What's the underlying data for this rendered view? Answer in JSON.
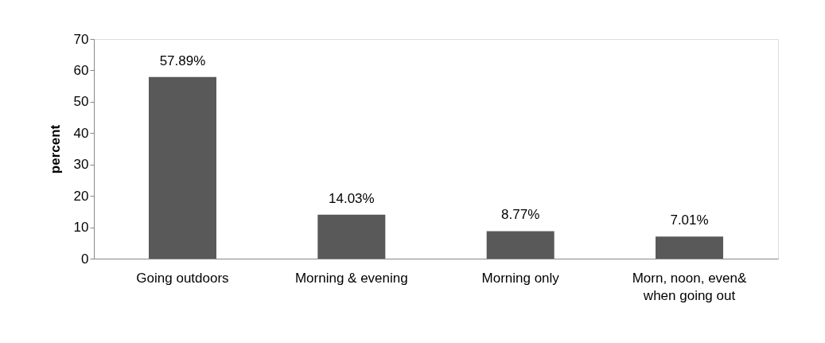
{
  "chart_data": {
    "type": "bar",
    "ylabel": "percent",
    "categories": [
      "Going outdoors",
      "Morning & evening",
      "Morning only",
      "Morn, noon, even& when going out"
    ],
    "values": [
      57.89,
      14.03,
      8.77,
      7.01
    ],
    "value_labels": [
      "57.89%",
      "14.03%",
      "8.77%",
      "7.01%"
    ],
    "color": "#595959",
    "ylim": [
      0,
      70
    ],
    "yticks": [
      0,
      10,
      20,
      30,
      40,
      50,
      60,
      70
    ],
    "grid": false
  }
}
